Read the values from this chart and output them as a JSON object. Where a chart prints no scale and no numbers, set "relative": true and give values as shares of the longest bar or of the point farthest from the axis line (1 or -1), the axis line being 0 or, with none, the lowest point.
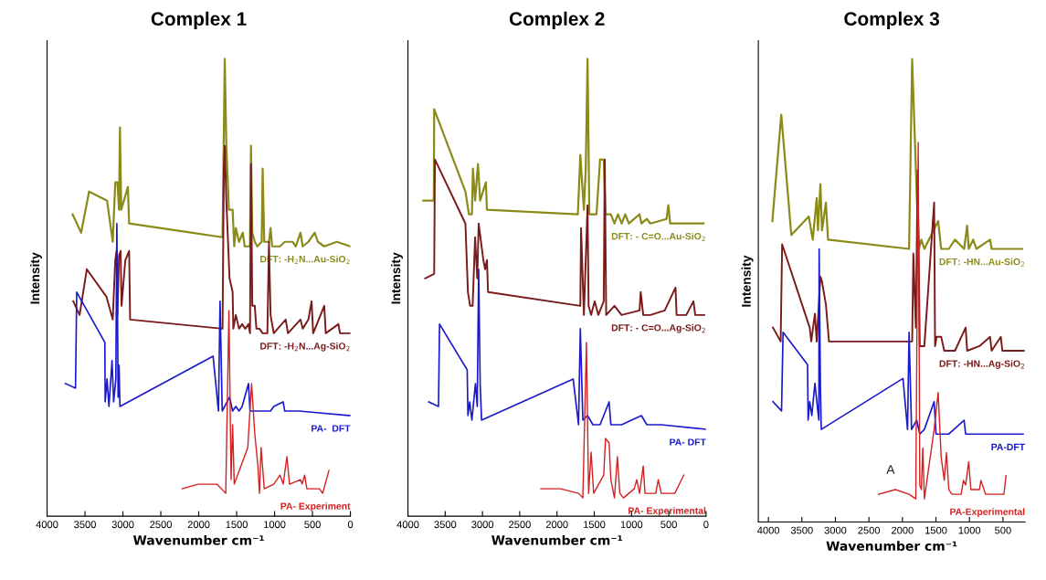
{
  "chart_data": [
    {
      "type": "line",
      "title": "Complex 1",
      "xlabel": "Wavenumber cm⁻¹",
      "ylabel": "Intensity",
      "relative": true,
      "tick_labels": "x",
      "legend": false,
      "grid": false,
      "xlim": [
        4000,
        0
      ],
      "xticks": [
        4000,
        3500,
        3000,
        2500,
        2000,
        1500,
        1000,
        500,
        0
      ],
      "series": [
        {
          "name": "DFT: -H$_{2}$N...Au-SiO$_{2}$",
          "color": "#8b8b1a",
          "x": [
            3663,
            3551,
            3446,
            3209,
            3176,
            3134,
            3101,
            3072,
            3051,
            3039,
            3022,
            2934,
            2918,
            1686,
            1657,
            1636,
            1602,
            1553,
            1532,
            1511,
            1469,
            1419,
            1394,
            1324,
            1311,
            1294,
            1261,
            1228,
            1170,
            1157,
            1136,
            1074,
            1053,
            1032,
            928,
            866,
            803,
            762,
            720,
            658,
            629,
            554,
            470,
            429,
            345,
            179,
            0
          ],
          "values": [
            0.66,
            0.62,
            0.71,
            0.69,
            0.65,
            0.6,
            0.73,
            0.73,
            0.67,
            0.85,
            0.67,
            0.72,
            0.64,
            0.61,
            1.0,
            0.81,
            0.67,
            0.67,
            0.59,
            0.63,
            0.6,
            0.62,
            0.59,
            0.59,
            0.81,
            0.62,
            0.6,
            0.59,
            0.6,
            0.76,
            0.6,
            0.6,
            0.63,
            0.59,
            0.59,
            0.6,
            0.6,
            0.6,
            0.59,
            0.62,
            0.59,
            0.6,
            0.62,
            0.6,
            0.59,
            0.6,
            0.59
          ]
        },
        {
          "name": "DFT: -H$_{2}$N...Ag-SiO$_{2}$",
          "color": "#7b1a1a",
          "x": [
            3655,
            3571,
            3476,
            3217,
            3184,
            3134,
            3101,
            3084,
            3072,
            3051,
            3030,
            3018,
            2968,
            2918,
            2905,
            1686,
            1669,
            1657,
            1636,
            1594,
            1553,
            1544,
            1511,
            1469,
            1428,
            1386,
            1344,
            1324,
            1311,
            1294,
            1261,
            1240,
            1199,
            1157,
            1095,
            1074,
            1053,
            1011,
            853,
            824,
            658,
            629,
            554,
            512,
            491,
            345,
            325,
            158,
            137,
            0
          ],
          "values": [
            0.47,
            0.44,
            0.54,
            0.48,
            0.46,
            0.43,
            0.56,
            0.58,
            0.44,
            0.57,
            0.58,
            0.46,
            0.56,
            0.58,
            0.43,
            0.41,
            0.76,
            0.81,
            0.69,
            0.52,
            0.49,
            0.41,
            0.44,
            0.41,
            0.42,
            0.41,
            0.42,
            0.4,
            0.77,
            0.46,
            0.46,
            0.41,
            0.41,
            0.4,
            0.4,
            0.6,
            0.44,
            0.4,
            0.43,
            0.4,
            0.43,
            0.41,
            0.43,
            0.47,
            0.4,
            0.46,
            0.4,
            0.42,
            0.4,
            0.4
          ]
        },
        {
          "name": "PA-  DFT",
          "color": "#1a1acc",
          "x": [
            3758,
            3625,
            3609,
            3238,
            3234,
            3209,
            3184,
            3143,
            3122,
            3093,
            3080,
            3063,
            3051,
            3039,
            1811,
            1740,
            1719,
            1690,
            1594,
            1553,
            1511,
            1469,
            1428,
            1344,
            1324,
            1261,
            1178,
            1053,
            1011,
            887,
            866,
            803,
            678,
            0
          ],
          "values": [
            0.29,
            0.28,
            0.49,
            0.38,
            0.25,
            0.3,
            0.24,
            0.34,
            0.25,
            0.3,
            0.64,
            0.26,
            0.33,
            0.24,
            0.35,
            0.23,
            0.47,
            0.23,
            0.26,
            0.23,
            0.24,
            0.23,
            0.24,
            0.29,
            0.23,
            0.23,
            0.23,
            0.23,
            0.24,
            0.25,
            0.23,
            0.23,
            0.23,
            0.22
          ]
        },
        {
          "name": "PA- Experiment",
          "color": "#d42020",
          "x": [
            2218,
            2010,
            1761,
            1644,
            1602,
            1573,
            1553,
            1532,
            1353,
            1336,
            1303,
            1261,
            1220,
            1199,
            1178,
            1136,
            1011,
            928,
            887,
            837,
            803,
            658,
            637,
            604,
            574,
            408,
            366,
            283
          ],
          "values": [
            0.06,
            0.07,
            0.07,
            0.05,
            0.45,
            0.08,
            0.2,
            0.07,
            0.15,
            0.2,
            0.29,
            0.18,
            0.11,
            0.05,
            0.15,
            0.06,
            0.07,
            0.09,
            0.07,
            0.13,
            0.07,
            0.08,
            0.07,
            0.09,
            0.06,
            0.06,
            0.05,
            0.1
          ]
        }
      ]
    },
    {
      "type": "line",
      "title": "Complex 2",
      "xlabel": "Wavenumber cm⁻¹",
      "ylabel": "Intensity",
      "relative": true,
      "tick_labels": "x",
      "legend": false,
      "grid": false,
      "xlim": [
        4000,
        0
      ],
      "xticks": [
        4000,
        3500,
        3000,
        2500,
        2000,
        1500,
        1000,
        500,
        0
      ],
      "series": [
        {
          "name": "DFT: - C=O...Au-SiO$_{2}$",
          "color": "#8b8b1a",
          "x": [
            3793,
            3653,
            3648,
            3229,
            3181,
            3142,
            3128,
            3099,
            3060,
            3031,
            2954,
            2940,
            1720,
            1687,
            1639,
            1614,
            1590,
            1566,
            1518,
            1470,
            1422,
            1373,
            1349,
            1277,
            1229,
            1181,
            1133,
            1084,
            1036,
            892,
            867,
            795,
            747,
            530,
            506,
            482,
            265,
            34
          ],
          "values": [
            0.69,
            0.69,
            0.89,
            0.71,
            0.66,
            0.66,
            0.76,
            0.69,
            0.77,
            0.69,
            0.73,
            0.67,
            0.66,
            0.79,
            0.67,
            0.76,
            1.0,
            0.66,
            0.66,
            0.66,
            0.78,
            0.78,
            0.66,
            0.66,
            0.64,
            0.66,
            0.64,
            0.66,
            0.64,
            0.66,
            0.64,
            0.65,
            0.64,
            0.65,
            0.68,
            0.64,
            0.64,
            0.64
          ]
        },
        {
          "name": "DFT: - C=O...Ag-SiO$_{2}$",
          "color": "#7b1a1a",
          "x": [
            3769,
            3648,
            3638,
            3229,
            3195,
            3166,
            3132,
            3099,
            3070,
            3051,
            2988,
            2964,
            2940,
            2925,
            1687,
            1677,
            1639,
            1590,
            1576,
            1542,
            1494,
            1446,
            1373,
            1359,
            1340,
            1229,
            1133,
            892,
            877,
            843,
            747,
            554,
            410,
            395,
            265,
            169,
            145,
            24
          ],
          "values": [
            0.52,
            0.53,
            0.78,
            0.64,
            0.49,
            0.46,
            0.46,
            0.61,
            0.52,
            0.64,
            0.56,
            0.54,
            0.56,
            0.49,
            0.46,
            0.63,
            0.44,
            0.68,
            0.46,
            0.44,
            0.47,
            0.44,
            0.47,
            0.78,
            0.44,
            0.46,
            0.44,
            0.45,
            0.49,
            0.44,
            0.44,
            0.45,
            0.5,
            0.44,
            0.44,
            0.47,
            0.44,
            0.44
          ]
        },
        {
          "name": "PA- DFT",
          "color": "#1a1acc",
          "x": [
            3720,
            3590,
            3576,
            3205,
            3195,
            3171,
            3142,
            3094,
            3070,
            3051,
            3031,
            3012,
            1783,
            1711,
            1687,
            1653,
            1590,
            1518,
            1422,
            1301,
            1277,
            1133,
            867,
            795,
            602,
            0
          ],
          "values": [
            0.25,
            0.24,
            0.42,
            0.32,
            0.22,
            0.25,
            0.21,
            0.29,
            0.24,
            0.54,
            0.29,
            0.21,
            0.3,
            0.2,
            0.41,
            0.21,
            0.22,
            0.2,
            0.2,
            0.25,
            0.2,
            0.2,
            0.22,
            0.2,
            0.2,
            0.19
          ]
        },
        {
          "name": "PA- Experimental",
          "color": "#d42020",
          "x": [
            2217,
            1952,
            1711,
            1653,
            1605,
            1576,
            1542,
            1508,
            1373,
            1349,
            1301,
            1277,
            1229,
            1190,
            1157,
            1108,
            964,
            930,
            892,
            843,
            819,
            675,
            641,
            602,
            458,
            419,
            299
          ],
          "values": [
            0.06,
            0.06,
            0.05,
            0.04,
            0.38,
            0.05,
            0.14,
            0.05,
            0.09,
            0.17,
            0.16,
            0.08,
            0.04,
            0.13,
            0.05,
            0.04,
            0.06,
            0.08,
            0.05,
            0.11,
            0.05,
            0.05,
            0.08,
            0.05,
            0.05,
            0.05,
            0.09
          ]
        }
      ]
    },
    {
      "type": "line",
      "title": "Complex 3",
      "xlabel": "Wavenumber cm⁻¹",
      "ylabel": "Intensity",
      "relative": true,
      "tick_labels": "x",
      "legend": false,
      "grid": false,
      "xlim": [
        4150,
        170
      ],
      "xticks": [
        4000,
        3500,
        3000,
        2500,
        2000,
        1500,
        1000,
        500
      ],
      "annotations": [
        "A"
      ],
      "series": [
        {
          "name": "DFT: -HN...Au-SiO$_{2}$",
          "color": "#8b8b1a",
          "x": [
            3941,
            3808,
            3658,
            3398,
            3338,
            3279,
            3261,
            3224,
            3201,
            3142,
            3110,
            1901,
            1855,
            1787,
            1755,
            1718,
            1673,
            1467,
            1422,
            1308,
            1216,
            1080,
            1034,
            1011,
            943,
            897,
            692,
            669,
            213
          ],
          "values": [
            0.65,
            0.88,
            0.62,
            0.66,
            0.61,
            0.7,
            0.63,
            0.73,
            0.63,
            0.69,
            0.61,
            0.59,
            1.0,
            0.71,
            0.59,
            0.61,
            0.59,
            0.65,
            0.59,
            0.59,
            0.61,
            0.59,
            0.64,
            0.59,
            0.61,
            0.59,
            0.61,
            0.59,
            0.59
          ]
        },
        {
          "name": "DFT: -HN...Ag-SiO$_{2}$",
          "color": "#7b1a1a",
          "x": [
            3932,
            3817,
            3795,
            3384,
            3361,
            3306,
            3279,
            3224,
            3201,
            3142,
            3096,
            1855,
            1837,
            1800,
            1773,
            1741,
            1673,
            1527,
            1513,
            1490,
            1422,
            1376,
            1216,
            1057,
            1034,
            851,
            692,
            669,
            532,
            509,
            190
          ],
          "values": [
            0.42,
            0.39,
            0.6,
            0.42,
            0.39,
            0.45,
            0.39,
            0.53,
            0.52,
            0.47,
            0.39,
            0.39,
            0.58,
            0.42,
            0.76,
            0.38,
            0.38,
            0.69,
            0.38,
            0.4,
            0.4,
            0.37,
            0.37,
            0.42,
            0.37,
            0.38,
            0.4,
            0.37,
            0.4,
            0.37,
            0.37
          ]
        },
        {
          "name": "PA-DFT",
          "color": "#1a1acc",
          "x": [
            3932,
            3804,
            3781,
            3416,
            3407,
            3384,
            3352,
            3306,
            3270,
            3247,
            3243,
            3224,
            3211,
            1992,
            1924,
            1901,
            1864,
            1787,
            1741,
            1673,
            1527,
            1499,
            1308,
            1080,
            1057,
            851,
            199
          ],
          "values": [
            0.26,
            0.24,
            0.41,
            0.34,
            0.22,
            0.26,
            0.23,
            0.3,
            0.25,
            0.22,
            0.59,
            0.29,
            0.2,
            0.31,
            0.2,
            0.41,
            0.2,
            0.22,
            0.19,
            0.2,
            0.26,
            0.19,
            0.19,
            0.22,
            0.19,
            0.19,
            0.19
          ]
        },
        {
          "name": "PA-Experimental",
          "color": "#d42020",
          "x": [
            2357,
            2106,
            1901,
            1801,
            1764,
            1741,
            1718,
            1696,
            1673,
            1527,
            1467,
            1422,
            1376,
            1344,
            1308,
            1262,
            1125,
            1089,
            1057,
            1011,
            979,
            851,
            829,
            760,
            578,
            486,
            454
          ],
          "values": [
            0.06,
            0.07,
            0.06,
            0.05,
            0.82,
            0.08,
            0.07,
            0.16,
            0.05,
            0.2,
            0.28,
            0.14,
            0.09,
            0.15,
            0.07,
            0.06,
            0.06,
            0.09,
            0.08,
            0.13,
            0.07,
            0.07,
            0.09,
            0.06,
            0.06,
            0.06,
            0.1
          ]
        }
      ]
    }
  ]
}
